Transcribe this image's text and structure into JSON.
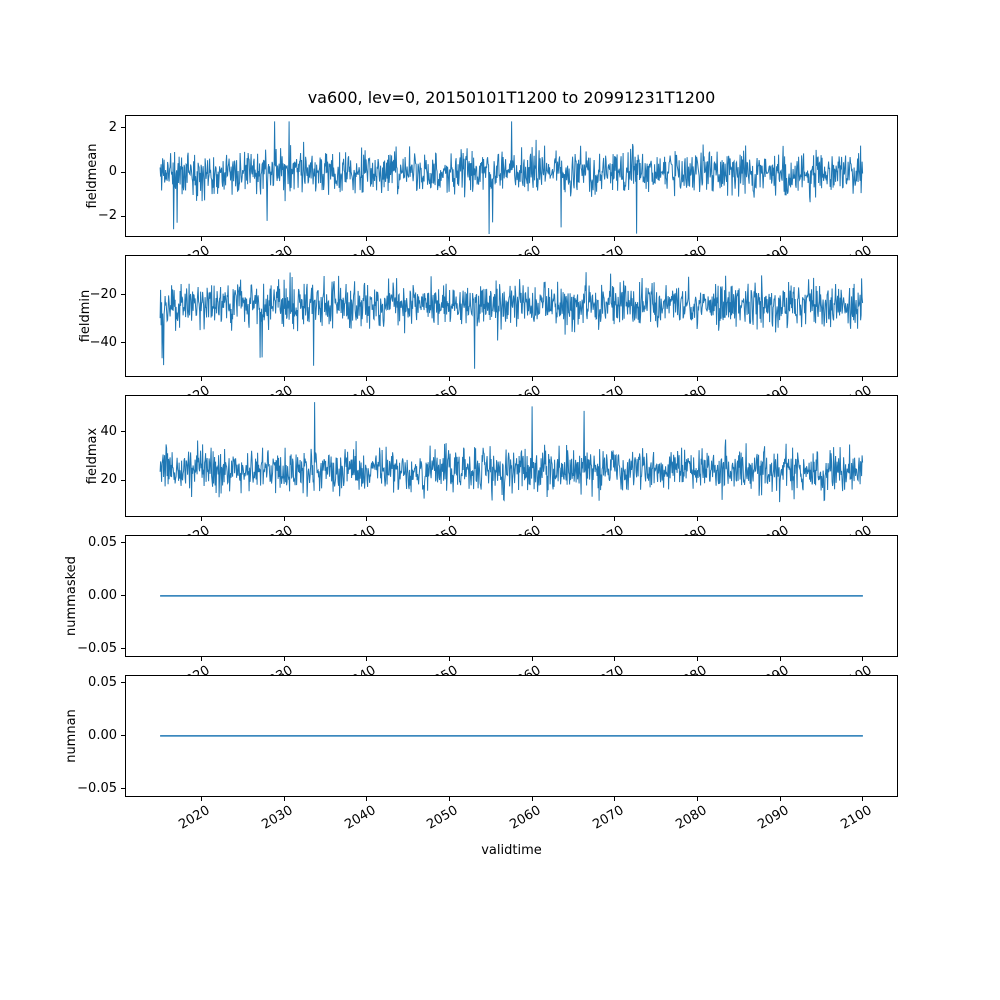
{
  "figure": {
    "title": "va600, lev=0, 20150101T1200 to 20991231T1200",
    "xlabel": "validtime",
    "line_color": "#1f77b4",
    "background_color": "#ffffff",
    "text_color": "#000000"
  },
  "chart_data": {
    "type": "line",
    "title": "va600, lev=0, 20150101T1200 to 20991231T1200",
    "xlabel": "validtime",
    "legend": "none",
    "grid": false,
    "x": {
      "lim": [
        2010.75,
        2104.25
      ],
      "data_start": 2015.0,
      "data_end": 2100.0,
      "ticks": [
        2020,
        2030,
        2040,
        2050,
        2060,
        2070,
        2080,
        2090,
        2100
      ],
      "tick_labels": [
        "2020",
        "2030",
        "2040",
        "2050",
        "2060",
        "2070",
        "2080",
        "2090",
        "2100"
      ],
      "tick_rotation_deg": 30
    },
    "subplots": [
      {
        "ylabel": "fieldmean",
        "yticks": [
          2,
          0,
          -2
        ],
        "ytick_labels": [
          "2",
          "0",
          "−2"
        ],
        "ylim": [
          -2.95,
          2.59
        ],
        "observed_range": [
          -3.0,
          2.3
        ],
        "typical_band": [
          -1.7,
          1.7
        ],
        "signal": {
          "kind": "noise",
          "mean": 0,
          "sigma": 0.85,
          "spike_prob": 0.004,
          "spike_min": 2.2,
          "spike_max": 3.0,
          "spike_dir": 0,
          "seed": 11
        }
      },
      {
        "ylabel": "fieldmin",
        "yticks": [
          -20,
          -40
        ],
        "ytick_labels": [
          "−20",
          "−40"
        ],
        "ylim": [
          -54.2,
          -3.4
        ],
        "observed_range": [
          -53.5,
          -7.5
        ],
        "typical_band": [
          -40,
          -8
        ],
        "signal": {
          "kind": "noise",
          "mean": -24,
          "sigma": 8,
          "spike_prob": 0.005,
          "spike_min": 22,
          "spike_max": 29.5,
          "spike_dir": -1,
          "seed": 22
        }
      },
      {
        "ylabel": "fieldmax",
        "yticks": [
          40,
          20
        ],
        "ytick_labels": [
          "40",
          "20"
        ],
        "ylim": [
          4.6,
          55.4
        ],
        "observed_range": [
          7.5,
          55.0
        ],
        "typical_band": [
          8,
          40
        ],
        "signal": {
          "kind": "noise",
          "mean": 24,
          "sigma": 8,
          "spike_prob": 0.005,
          "spike_min": 22,
          "spike_max": 31,
          "spike_dir": 1,
          "seed": 33
        }
      },
      {
        "ylabel": "nummasked",
        "yticks": [
          0.05,
          0.0,
          -0.05
        ],
        "ytick_labels": [
          "0.05",
          "0.00",
          "−0.05"
        ],
        "ylim": [
          -0.0576,
          0.0575
        ],
        "observed_range": [
          0,
          0
        ],
        "typical_band": [
          0,
          0
        ],
        "signal": {
          "kind": "constant",
          "value": 0,
          "seed": 44
        }
      },
      {
        "ylabel": "numnan",
        "yticks": [
          0.05,
          0.0,
          -0.05
        ],
        "ytick_labels": [
          "0.05",
          "0.00",
          "−0.05"
        ],
        "ylim": [
          -0.0576,
          0.0575
        ],
        "observed_range": [
          0,
          0
        ],
        "typical_band": [
          0,
          0
        ],
        "signal": {
          "kind": "constant",
          "value": 0,
          "seed": 55
        }
      }
    ]
  }
}
